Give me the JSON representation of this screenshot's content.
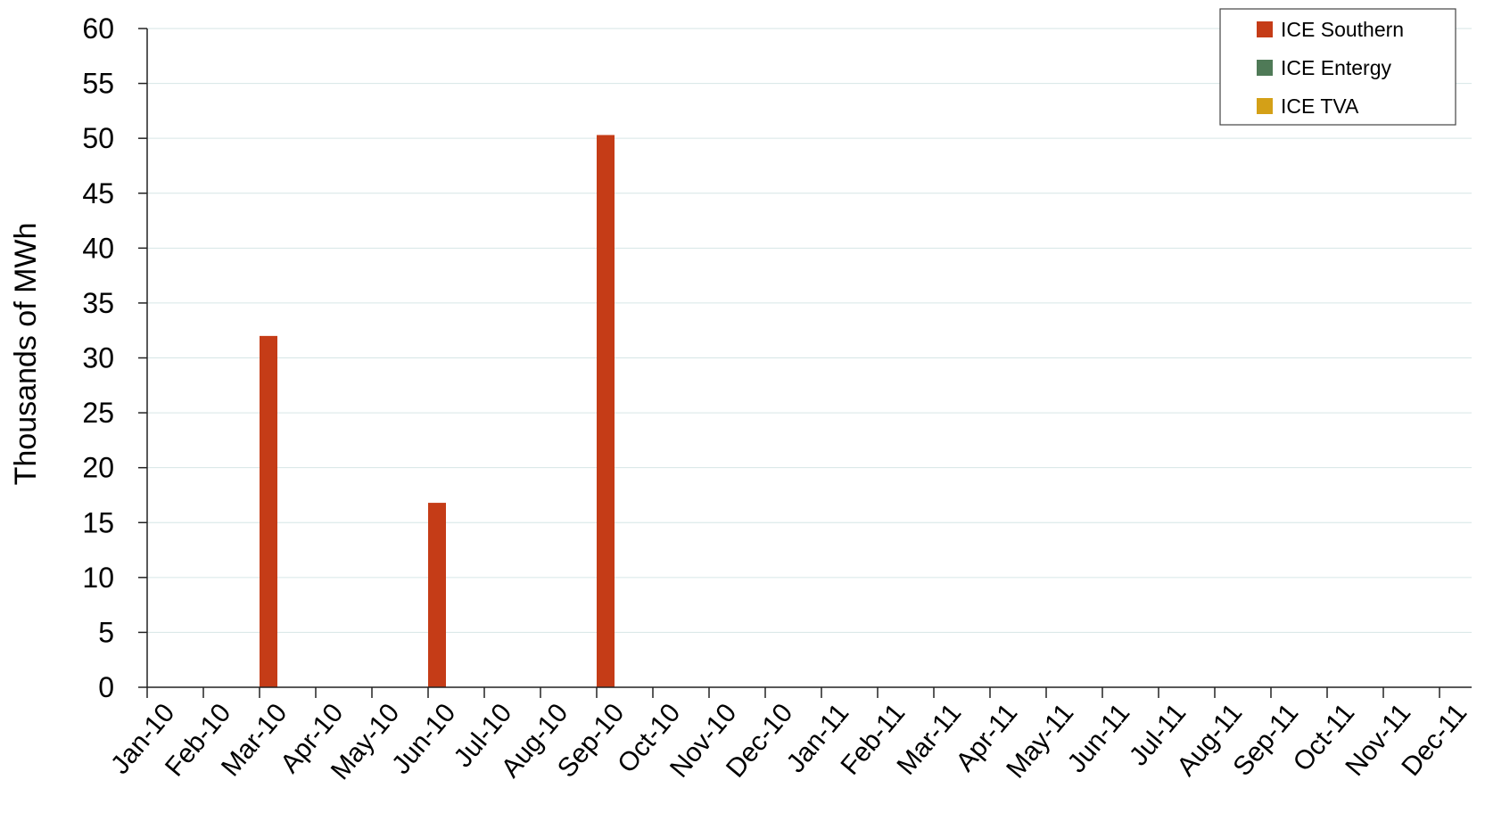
{
  "chart_data": {
    "type": "bar",
    "title": "",
    "xlabel": "",
    "ylabel": "Thousands of MWh",
    "ylim": [
      0,
      60
    ],
    "yticks": [
      0,
      5,
      10,
      15,
      20,
      25,
      30,
      35,
      40,
      45,
      50,
      55,
      60
    ],
    "grid": true,
    "legend_position": "top-right",
    "categories": [
      "Jan-10",
      "Feb-10",
      "Mar-10",
      "Apr-10",
      "May-10",
      "Jun-10",
      "Jul-10",
      "Aug-10",
      "Sep-10",
      "Oct-10",
      "Nov-10",
      "Dec-10",
      "Jan-11",
      "Feb-11",
      "Mar-11",
      "Apr-11",
      "May-11",
      "Jun-11",
      "Jul-11",
      "Aug-11",
      "Sep-11",
      "Oct-11",
      "Nov-11",
      "Dec-11"
    ],
    "series": [
      {
        "name": "ICE Southern",
        "color": "#c53c17",
        "values": [
          0,
          32,
          0,
          0,
          16.8,
          0,
          0,
          50.3,
          0,
          0,
          0,
          0,
          0,
          0,
          0,
          0,
          0,
          0,
          0,
          0,
          0,
          0,
          0,
          0
        ]
      },
      {
        "name": "ICE Entergy",
        "color": "#4f7a57",
        "values": [
          0,
          0,
          0,
          0,
          0,
          0,
          0,
          0,
          0,
          0,
          0,
          0,
          0,
          0,
          0,
          0,
          0,
          0,
          0,
          0,
          0,
          0,
          0,
          0
        ]
      },
      {
        "name": "ICE TVA",
        "color": "#d4a017",
        "values": [
          0,
          0,
          0,
          0,
          0,
          0,
          0,
          0,
          0,
          0,
          0,
          0,
          0,
          0,
          0,
          0,
          0,
          0,
          0,
          0,
          0,
          0,
          0,
          0
        ]
      }
    ]
  }
}
